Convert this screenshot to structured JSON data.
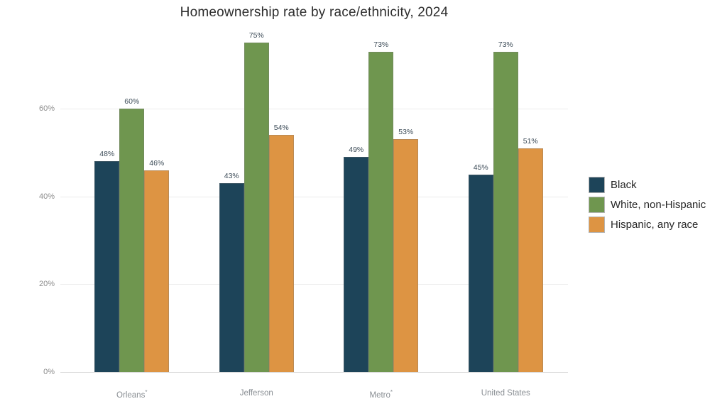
{
  "chart_data": {
    "type": "bar",
    "title": "Homeownership rate by race/ethnicity, 2024",
    "categories": [
      "Orleans*",
      "Jefferson",
      "Metro*",
      "United States"
    ],
    "series": [
      {
        "name": "Black",
        "color": "#1d4459",
        "values": [
          48,
          43,
          49,
          45
        ]
      },
      {
        "name": "White, non-Hispanic",
        "color": "#6f964f",
        "values": [
          60,
          75,
          73,
          73
        ]
      },
      {
        "name": "Hispanic, any race",
        "color": "#dd9443",
        "values": [
          46,
          54,
          53,
          51
        ]
      }
    ],
    "value_suffix": "%",
    "y_ticks": [
      0,
      20,
      40,
      60
    ],
    "y_tick_suffix": "%",
    "ylim": [
      0,
      78.3
    ],
    "grid": true,
    "legend_position": "right",
    "value_labels_shown": true
  }
}
